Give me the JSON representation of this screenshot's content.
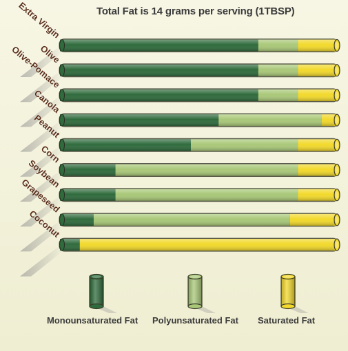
{
  "chart_data": {
    "type": "bar",
    "orientation": "horizontal-stacked",
    "title": "Total Fat is 14 grams per serving (1TBSP)",
    "categories": [
      "Extra Virgin",
      "Olive",
      "Olive-Pomace",
      "Canola",
      "Peanut",
      "Corn",
      "Soybean",
      "Grapeseed",
      "Coconut"
    ],
    "series": [
      {
        "name": "Monounsaturated Fat",
        "color": "#2f6b3c",
        "values": [
          10,
          10,
          10,
          8,
          6.6,
          2.8,
          2.8,
          1.7,
          1
        ]
      },
      {
        "name": "Polyunsaturated Fat",
        "color": "#a9c878",
        "values": [
          2,
          2,
          2,
          5.2,
          5.4,
          9.2,
          9.2,
          9.9,
          0
        ]
      },
      {
        "name": "Saturated Fat",
        "color": "#f2d92b",
        "values": [
          2,
          2,
          2,
          0.8,
          2,
          2,
          2,
          2.4,
          13
        ]
      }
    ],
    "total": 14,
    "legend_position": "bottom",
    "grid": false
  }
}
